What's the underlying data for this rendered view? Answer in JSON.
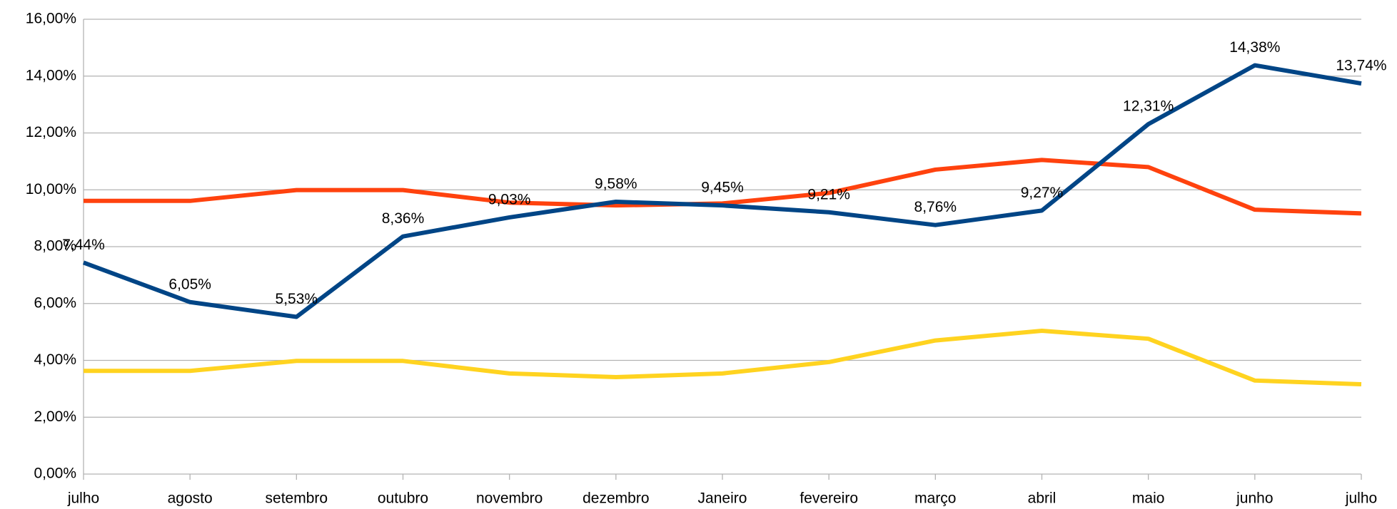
{
  "chart_data": {
    "type": "line",
    "categories": [
      "julho",
      "agosto",
      "setembro",
      "outubro",
      "novembro",
      "dezembro",
      "Janeiro",
      "fevereiro",
      "março",
      "abril",
      "maio",
      "junho",
      "julho"
    ],
    "series": [
      {
        "color": "#004586",
        "values": [
          7.44,
          6.05,
          5.53,
          8.36,
          9.03,
          9.58,
          9.45,
          9.21,
          8.76,
          9.27,
          12.31,
          14.38,
          13.74
        ],
        "value_labels": [
          "7,44%",
          "6,05%",
          "5,53%",
          "8,36%",
          "9,03%",
          "9,58%",
          "9,45%",
          "9,21%",
          "8,76%",
          "9,27%",
          "12,31%",
          "14,38%",
          "13,74%"
        ]
      },
      {
        "color": "#ff420e",
        "values": [
          9.61,
          9.61,
          9.99,
          9.99,
          9.55,
          9.45,
          9.52,
          9.89,
          10.71,
          11.05,
          10.8,
          9.3,
          9.17
        ]
      },
      {
        "color": "#ffd320",
        "values": [
          3.63,
          3.63,
          3.98,
          3.98,
          3.54,
          3.41,
          3.54,
          3.94,
          4.7,
          5.04,
          4.76,
          3.29,
          3.16
        ]
      }
    ],
    "ylim": [
      0,
      16
    ],
    "yticks": [
      {
        "value": 0,
        "label": "0,00%"
      },
      {
        "value": 2,
        "label": "2,00%"
      },
      {
        "value": 4,
        "label": "4,00%"
      },
      {
        "value": 6,
        "label": "6,00%"
      },
      {
        "value": 8,
        "label": "8,00%"
      },
      {
        "value": 10,
        "label": "10,00%"
      },
      {
        "value": 12,
        "label": "12,00%"
      },
      {
        "value": 14,
        "label": "14,00%"
      },
      {
        "value": 16,
        "label": "16,00%"
      }
    ],
    "grid": true
  }
}
